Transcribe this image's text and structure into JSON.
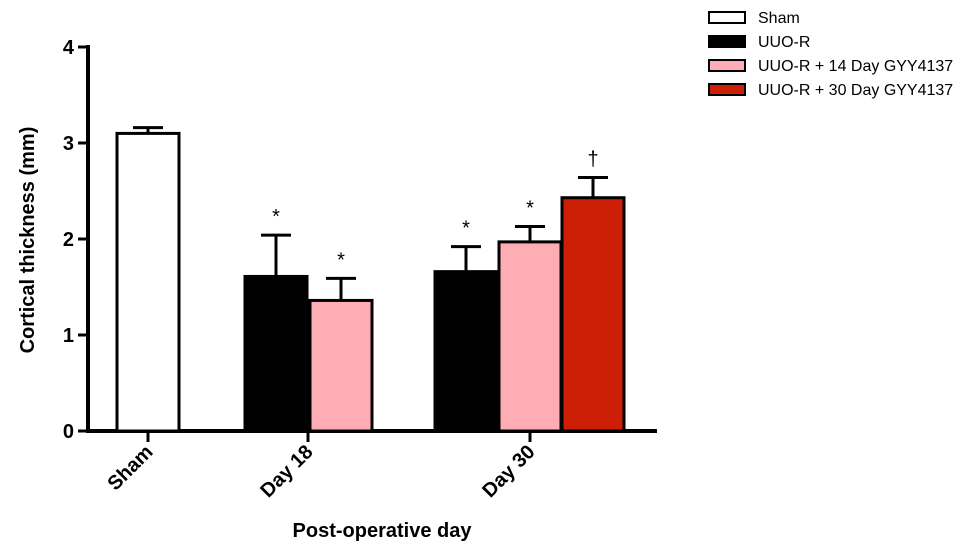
{
  "chart_data": {
    "type": "bar",
    "title": "",
    "xlabel": "Post-operative day",
    "ylabel": "Cortical thickness (mm)",
    "ylim": [
      0,
      4
    ],
    "yticks": [
      "0",
      "1",
      "2",
      "3",
      "4"
    ],
    "categories": [
      "Sham",
      "Day 18",
      "Day 30"
    ],
    "legend_position": "top-right",
    "series": [
      {
        "name": "Sham",
        "color": "#ffffff",
        "values": [
          3.1,
          null,
          null
        ],
        "errors": [
          0.06,
          null,
          null
        ],
        "markers": [
          "",
          "",
          ""
        ]
      },
      {
        "name": "UUO-R",
        "color": "#000000",
        "values": [
          null,
          1.61,
          1.66
        ],
        "errors": [
          null,
          0.43,
          0.26
        ],
        "markers": [
          "",
          "*",
          "*"
        ]
      },
      {
        "name": "UUO-R + 14 Day GYY4137",
        "color": "#ffadb5",
        "values": [
          null,
          1.36,
          1.97
        ],
        "errors": [
          null,
          0.23,
          0.16
        ],
        "markers": [
          "",
          "*",
          "*"
        ]
      },
      {
        "name": "UUO-R + 30 Day GYY4137",
        "color": "#cc1f06",
        "values": [
          null,
          null,
          2.43
        ],
        "errors": [
          null,
          null,
          0.21
        ],
        "markers": [
          "",
          "",
          "†"
        ]
      }
    ]
  }
}
